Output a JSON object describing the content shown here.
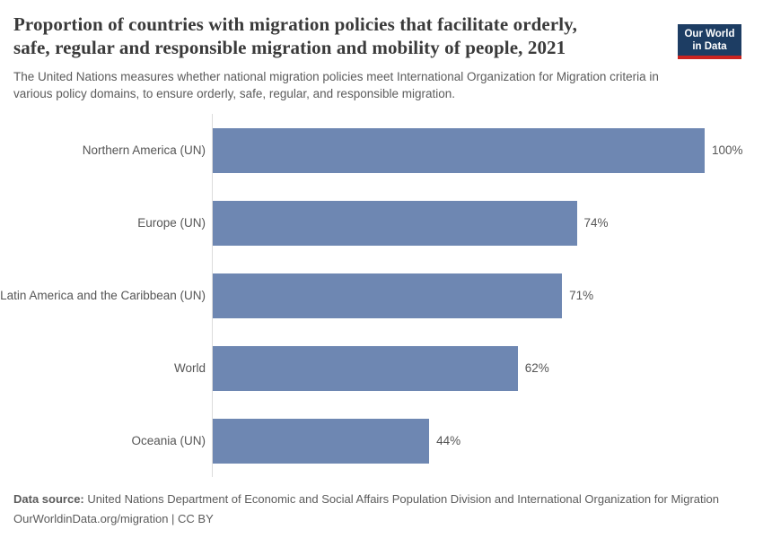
{
  "header": {
    "title_line1": "Proportion of countries with migration policies that facilitate orderly,",
    "title_line2": "safe, regular and responsible migration and mobility of people, 2021",
    "subtitle_line1": "The United Nations measures whether national migration policies meet International Organization for Migration criteria in",
    "subtitle_line2": "various policy domains, to ensure orderly, safe, regular, and responsible migration.",
    "logo": {
      "line1": "Our World",
      "line2": "in Data",
      "bg_color": "#1d3d63",
      "accent_color": "#cb2420"
    }
  },
  "chart_data": {
    "type": "bar",
    "orientation": "horizontal",
    "title": "Proportion of countries with migration policies that facilitate orderly, safe, regular and responsible migration and mobility of people, 2021",
    "xlabel": "",
    "ylabel": "",
    "xlim": [
      0,
      100
    ],
    "unit": "%",
    "grid": false,
    "legend": "none",
    "bar_color": "#6e87b2",
    "axis_line_color": "#dcdcdc",
    "categories": [
      "Northern America (UN)",
      "Europe (UN)",
      "Latin America and the Caribbean (UN)",
      "World",
      "Oceania (UN)"
    ],
    "values": [
      100,
      74,
      71,
      62,
      44
    ],
    "value_labels": [
      "100%",
      "74%",
      "71%",
      "62%",
      "44%"
    ]
  },
  "footer": {
    "datasource_label": "Data source:",
    "datasource_text": "United Nations Department of Economic and Social Affairs Population Division and International Organization for Migration",
    "license_line": "OurWorldinData.org/migration | CC BY"
  }
}
